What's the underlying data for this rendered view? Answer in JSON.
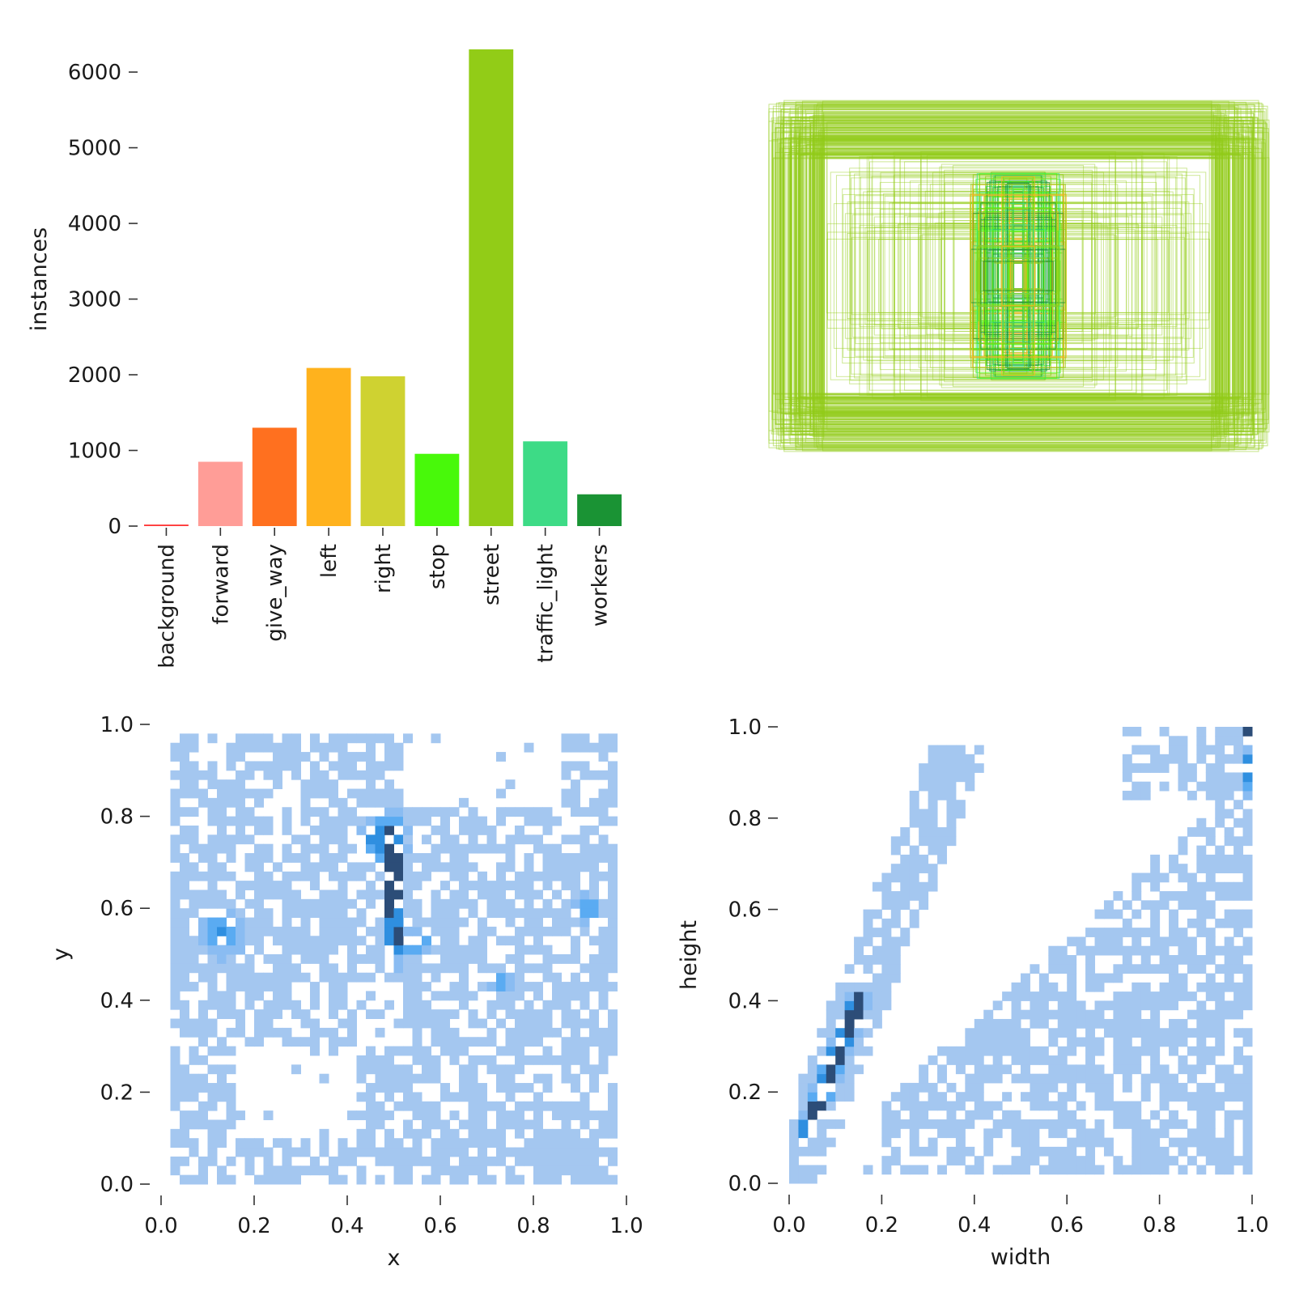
{
  "chart_data": [
    {
      "type": "bar",
      "ylabel": "instances",
      "ylim": [
        0,
        6300
      ],
      "yticks": [
        0,
        1000,
        2000,
        3000,
        4000,
        5000,
        6000
      ],
      "categories": [
        "background",
        "forward",
        "give_way",
        "left",
        "right",
        "stop",
        "street",
        "traffic_light",
        "workers"
      ],
      "values": [
        20,
        850,
        1300,
        2090,
        1980,
        955,
        6300,
        1120,
        420
      ],
      "colors": [
        "#ff3838",
        "#ff9d97",
        "#ff701f",
        "#ffb21d",
        "#cfd231",
        "#48f90a",
        "#92cc17",
        "#3ddb86",
        "#1a9334"
      ]
    },
    {
      "type": "box_overlay",
      "description_colors": [
        "#92cc17",
        "#3ddb86",
        "#1a9334",
        "#48f90a",
        "#ffb21d"
      ]
    },
    {
      "type": "heatmap",
      "xlabel": "x",
      "ylabel": "y",
      "xlim": [
        0,
        1
      ],
      "ylim": [
        0,
        1
      ],
      "xticks": [
        0.0,
        0.2,
        0.4,
        0.6,
        0.8,
        1.0
      ],
      "yticks": [
        0.0,
        0.2,
        0.4,
        0.6,
        0.8,
        1.0
      ],
      "hotspots": [
        {
          "x": 0.5,
          "y": 0.64,
          "sx": 0.012,
          "sy": 0.09,
          "w": 1.0
        },
        {
          "x": 0.47,
          "y": 0.75,
          "sx": 0.03,
          "sy": 0.03,
          "w": 0.55
        },
        {
          "x": 0.54,
          "y": 0.53,
          "sx": 0.03,
          "sy": 0.02,
          "w": 0.45
        },
        {
          "x": 0.13,
          "y": 0.55,
          "sx": 0.03,
          "sy": 0.03,
          "w": 0.4
        },
        {
          "x": 0.73,
          "y": 0.44,
          "sx": 0.02,
          "sy": 0.02,
          "w": 0.35
        },
        {
          "x": 0.92,
          "y": 0.6,
          "sx": 0.02,
          "sy": 0.02,
          "w": 0.35
        }
      ]
    },
    {
      "type": "heatmap",
      "xlabel": "width",
      "ylabel": "height",
      "xlim": [
        0,
        1
      ],
      "ylim": [
        0,
        1
      ],
      "xticks": [
        0.0,
        0.2,
        0.4,
        0.6,
        0.8,
        1.0
      ],
      "yticks": [
        0.0,
        0.2,
        0.4,
        0.6,
        0.8,
        1.0
      ],
      "diagonal_band": {
        "x0": 0.04,
        "y0": 0.12,
        "x1": 0.15,
        "y1": 0.4,
        "w": 1.0
      },
      "hotspots": [
        {
          "x": 0.99,
          "y": 0.99,
          "sx": 0.006,
          "sy": 0.006,
          "w": 1.0
        },
        {
          "x": 0.99,
          "y": 0.9,
          "sx": 0.006,
          "sy": 0.04,
          "w": 0.5
        }
      ]
    }
  ]
}
